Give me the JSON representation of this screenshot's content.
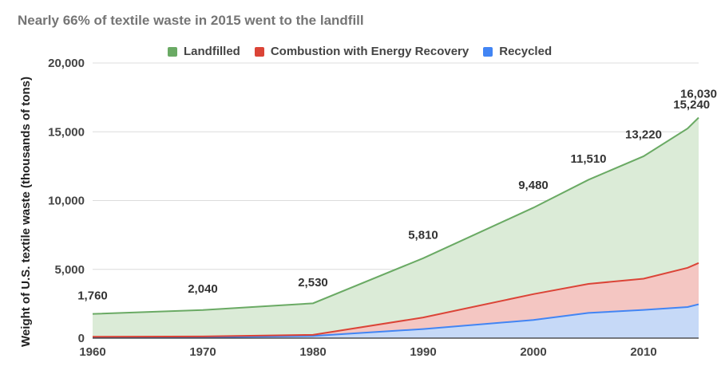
{
  "chart_data": {
    "type": "area",
    "title": "Nearly 66% of textile waste in 2015 went to the landfill",
    "ylabel": "Weight of U.S. textile waste (thousands of tons)",
    "xlabel": "",
    "xlim": [
      1960,
      2015
    ],
    "ylim": [
      0,
      20000
    ],
    "x_ticks": [
      "1960",
      "1970",
      "1980",
      "1990",
      "2000",
      "2010"
    ],
    "y_ticks": [
      "0",
      "5,000",
      "10,000",
      "15,000",
      "20,000"
    ],
    "grid": true,
    "legend_position": "top",
    "x": [
      1960,
      1970,
      1980,
      1990,
      2000,
      2005,
      2010,
      2014,
      2015
    ],
    "stacked": true,
    "series": [
      {
        "name": "Recycled",
        "color": "#4285f4",
        "fill": "#c6d9f7",
        "values": [
          50,
          60,
          160,
          660,
          1320,
          1830,
          2050,
          2260,
          2460
        ]
      },
      {
        "name": "Combustion with Energy Recovery",
        "color": "#db4437",
        "fill": "#f4c6c2",
        "values": [
          50,
          60,
          80,
          840,
          1880,
          2110,
          2270,
          2850,
          3000
        ]
      },
      {
        "name": "Landfilled",
        "color": "#6aaa64",
        "fill": "#dbebd7",
        "values": [
          1660,
          1920,
          2290,
          4310,
          6280,
          7570,
          8900,
          10130,
          10570
        ]
      }
    ],
    "data_labels": [
      "1,760",
      "2,040",
      "2,530",
      "5,810",
      "9,480",
      "11,510",
      "13,220",
      "15,240",
      "16,030"
    ]
  }
}
